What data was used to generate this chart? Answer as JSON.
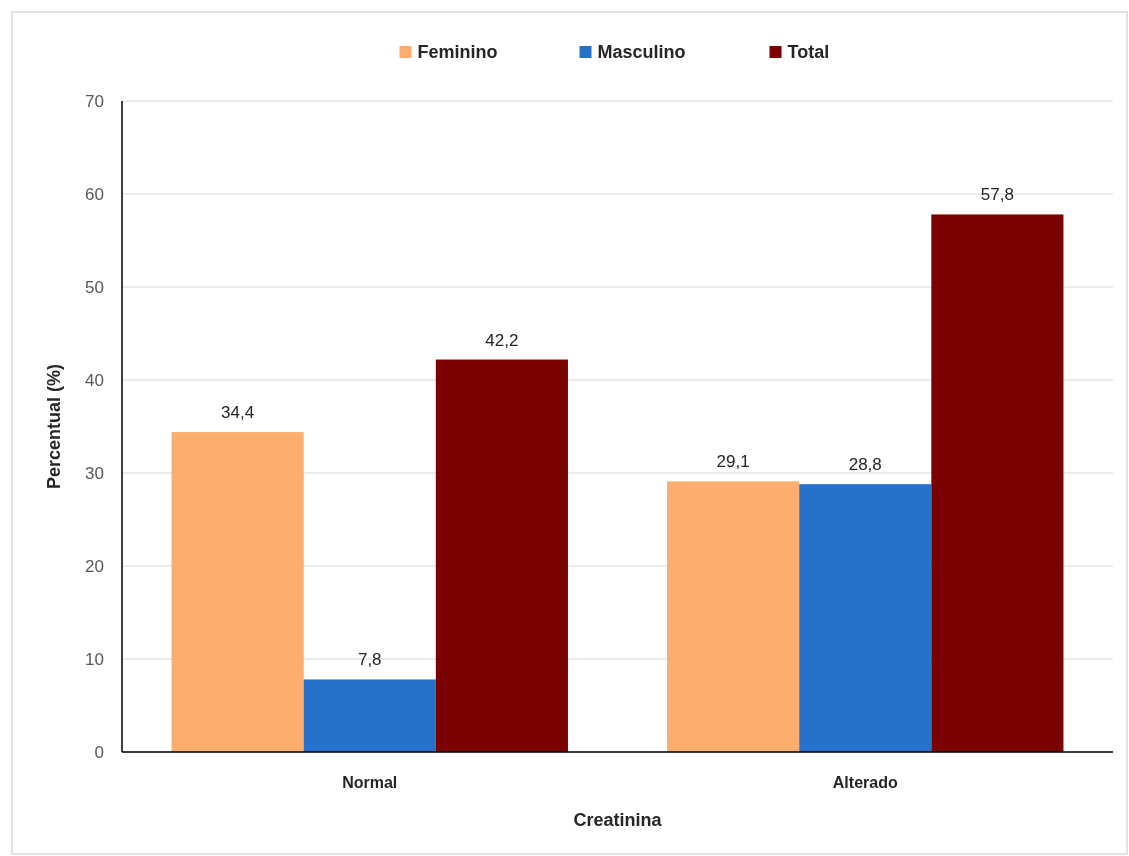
{
  "chart_data": {
    "type": "bar",
    "xlabel": "Creatinina",
    "ylabel": "Percentual (%)",
    "categories": [
      "Normal",
      "Alterado"
    ],
    "series": [
      {
        "name": "Feminino",
        "color": "#fbae70",
        "values": [
          34.4,
          29.1
        ],
        "value_labels": [
          "34,4",
          "29,1"
        ]
      },
      {
        "name": "Masculino",
        "color": "#2771cc",
        "values": [
          7.8,
          28.8
        ],
        "value_labels": [
          "7,8",
          "28,8"
        ]
      },
      {
        "name": "Total",
        "color": "#7b0000",
        "values": [
          42.2,
          57.8
        ],
        "value_labels": [
          "42,2",
          "57,8"
        ]
      }
    ],
    "ylim": [
      0,
      70
    ],
    "yticks": [
      0,
      10,
      20,
      30,
      40,
      50,
      60,
      70
    ],
    "grid": "y",
    "legend": "top"
  }
}
